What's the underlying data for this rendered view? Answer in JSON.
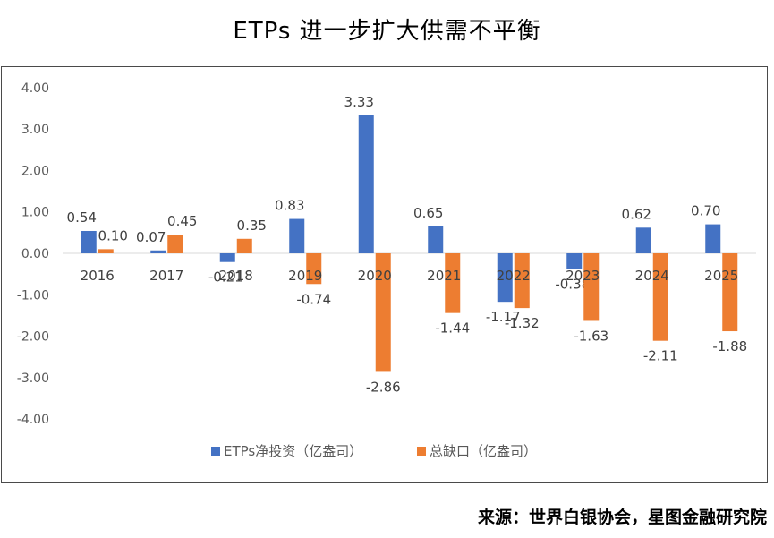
{
  "chart_data": {
    "type": "bar",
    "title": "ETPs 进一步扩大供需不平衡",
    "categories": [
      "2016",
      "2017",
      "2018",
      "2019",
      "2020",
      "2021",
      "2022",
      "2023",
      "2024",
      "2025"
    ],
    "series": [
      {
        "name": "ETPs净投资（亿盎司）",
        "color": "#4472C4",
        "values": [
          0.54,
          0.07,
          -0.21,
          0.83,
          3.33,
          0.65,
          -1.17,
          -0.38,
          0.62,
          0.7
        ]
      },
      {
        "name": "总缺口（亿盎司）",
        "color": "#ED7D31",
        "values": [
          0.1,
          0.45,
          0.35,
          -0.74,
          -2.86,
          -1.44,
          -1.32,
          -1.63,
          -2.11,
          -1.88
        ]
      }
    ],
    "ylim": [
      -4,
      4
    ],
    "yticks": [
      "4.00",
      "3.00",
      "2.00",
      "1.00",
      "0.00",
      "-1.00",
      "-2.00",
      "-3.00",
      "-4.00"
    ],
    "data_labels": [
      [
        "0.54",
        "0.07",
        "-0.21",
        "0.83",
        "3.33",
        "0.65",
        "-1.17",
        "-0.38",
        "0.62",
        "0.70"
      ],
      [
        "0.10",
        "0.45",
        "0.35",
        "-0.74",
        "-2.86",
        "-1.44",
        "-1.32",
        "-1.63",
        "-2.11",
        "-1.88"
      ]
    ],
    "legend_position": "bottom",
    "grid": false,
    "xlabel": "",
    "ylabel": ""
  },
  "source": "来源：世界白银协会，星图金融研究院"
}
